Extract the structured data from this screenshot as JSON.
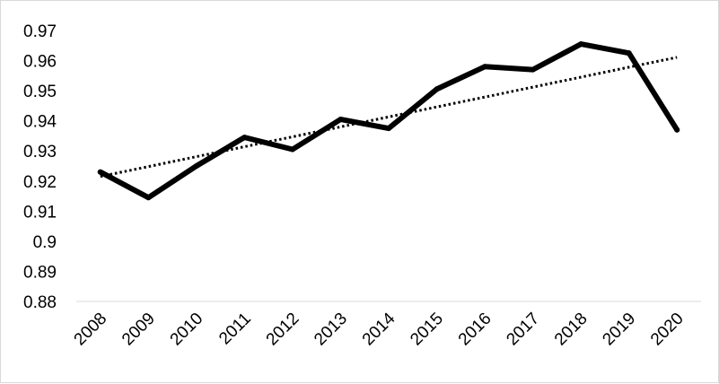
{
  "chart_data": {
    "type": "line",
    "title": "",
    "xlabel": "",
    "ylabel": "",
    "categories": [
      "2008",
      "2009",
      "2010",
      "2011",
      "2012",
      "2013",
      "2014",
      "2015",
      "2016",
      "2017",
      "2018",
      "2019",
      "2020"
    ],
    "series": [
      {
        "values": [
          0.923,
          0.9145,
          0.925,
          0.9345,
          0.9305,
          0.9405,
          0.9375,
          0.9505,
          0.958,
          0.957,
          0.9655,
          0.9625,
          0.937
        ],
        "style": "solid",
        "color": "#000000"
      },
      {
        "trendline": "linear",
        "values": [
          0.9215,
          0.9248,
          0.9281,
          0.9314,
          0.9347,
          0.938,
          0.9413,
          0.9446,
          0.9479,
          0.9512,
          0.9545,
          0.9578,
          0.9611
        ],
        "style": "dotted",
        "color": "#000000"
      }
    ],
    "ylim": [
      0.88,
      0.97
    ],
    "yticks": [
      "0.88",
      "0.89",
      "0.9",
      "0.91",
      "0.92",
      "0.93",
      "0.94",
      "0.95",
      "0.96",
      "0.97"
    ],
    "grid": false,
    "legend": "none"
  }
}
